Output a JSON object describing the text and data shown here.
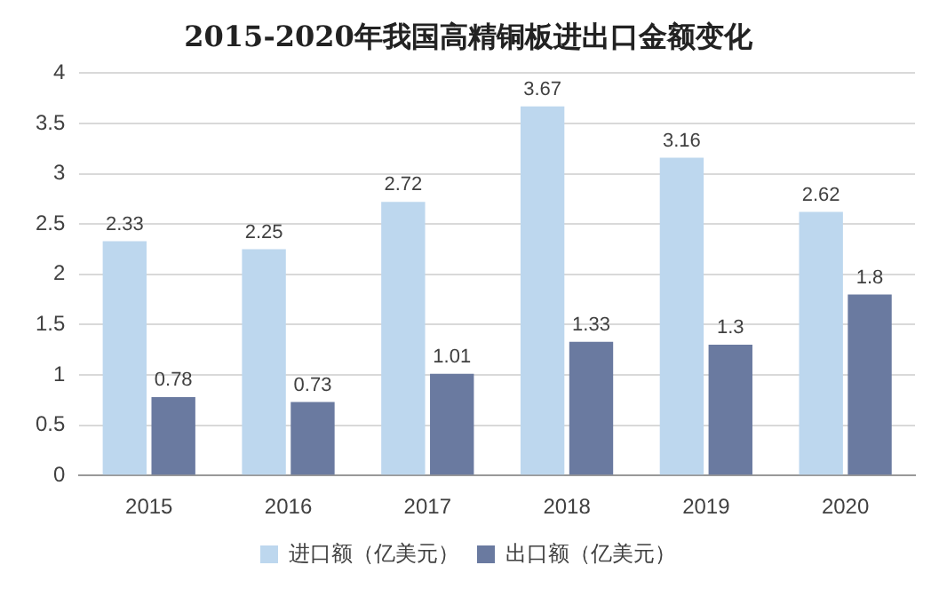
{
  "chart_data": {
    "type": "bar",
    "title": "2015-2020年我国高精铜板进出口金额变化",
    "categories": [
      "2015",
      "2016",
      "2017",
      "2018",
      "2019",
      "2020"
    ],
    "series": [
      {
        "name": "进口额（亿美元）",
        "color": "#bdd7ee",
        "values": [
          2.33,
          2.25,
          2.72,
          3.67,
          3.16,
          2.62
        ]
      },
      {
        "name": "出口额（亿美元）",
        "color": "#6a7aa0",
        "values": [
          0.78,
          0.73,
          1.01,
          1.33,
          1.3,
          1.8
        ]
      }
    ],
    "ylim": [
      0,
      4
    ],
    "yticks": [
      0,
      0.5,
      1,
      1.5,
      2,
      2.5,
      3,
      3.5,
      4
    ],
    "grid": "y",
    "legend": "bottom",
    "data_labels": true
  }
}
